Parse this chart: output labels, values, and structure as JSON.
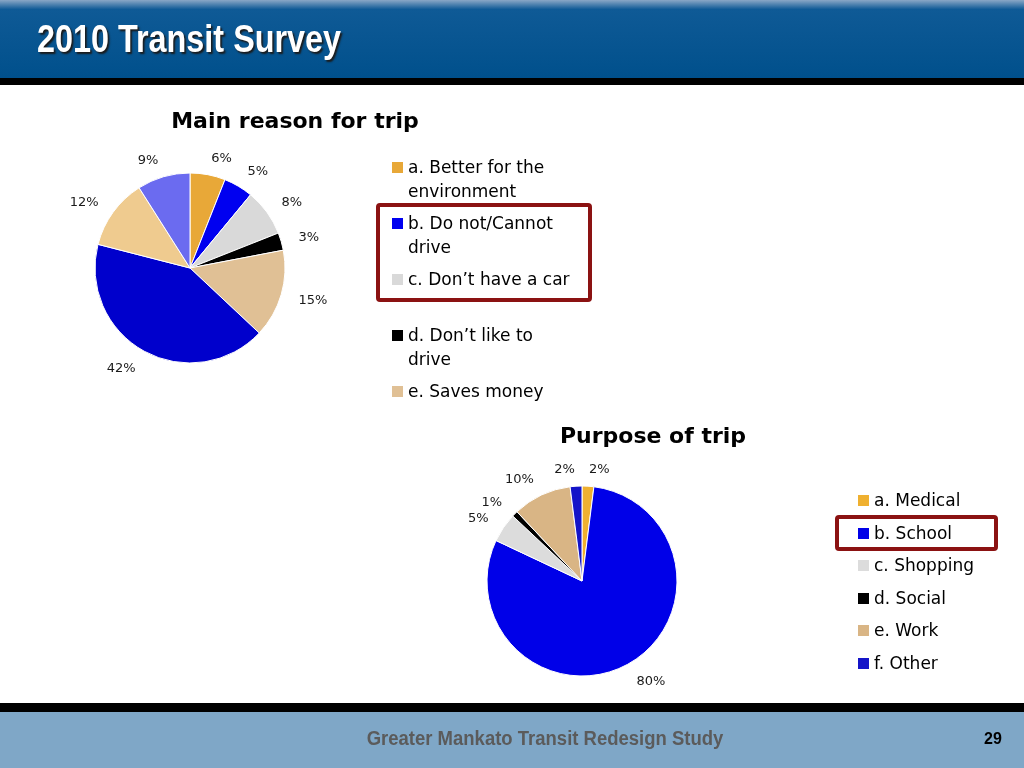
{
  "chart_data": [
    {
      "type": "pie",
      "title": "Main reason for trip",
      "categories": [
        "a. Better for the environment",
        "b. Do not/Cannot drive",
        "c. Don’t have a car",
        "d. Don’t like to drive",
        "e. Saves money",
        null,
        null,
        null
      ],
      "values": [
        6,
        5,
        8,
        3,
        15,
        42,
        12,
        9
      ],
      "colors": [
        "#e8a838",
        "#0000f0",
        "#d9d9d9",
        "#000000",
        "#e0c095",
        "#0000cc",
        "#efcb8f",
        "#6b6bf0"
      ],
      "value_labels": [
        "6%",
        "5%",
        "8%",
        "3%",
        "15%",
        "42%",
        "12%",
        "9%"
      ],
      "legend": "right",
      "annotations": [
        "2010 Transit Survey"
      ]
    },
    {
      "type": "pie",
      "title": "Purpose of trip",
      "categories": [
        "a. Medical",
        "b. School",
        "c. Shopping",
        "d. Social",
        "e. Work",
        "f. Other"
      ],
      "values": [
        2,
        80,
        5,
        1,
        10,
        2
      ],
      "colors": [
        "#efb030",
        "#0000e8",
        "#dcdcdc",
        "#000000",
        "#d9b585",
        "#1414c8"
      ],
      "value_labels": [
        "2%",
        "80%",
        "5%",
        "1%",
        "10%",
        "2%"
      ],
      "legend": "right",
      "annotations": [
        "Greater Mankato Transit Redesign Study",
        "29"
      ]
    }
  ]
}
